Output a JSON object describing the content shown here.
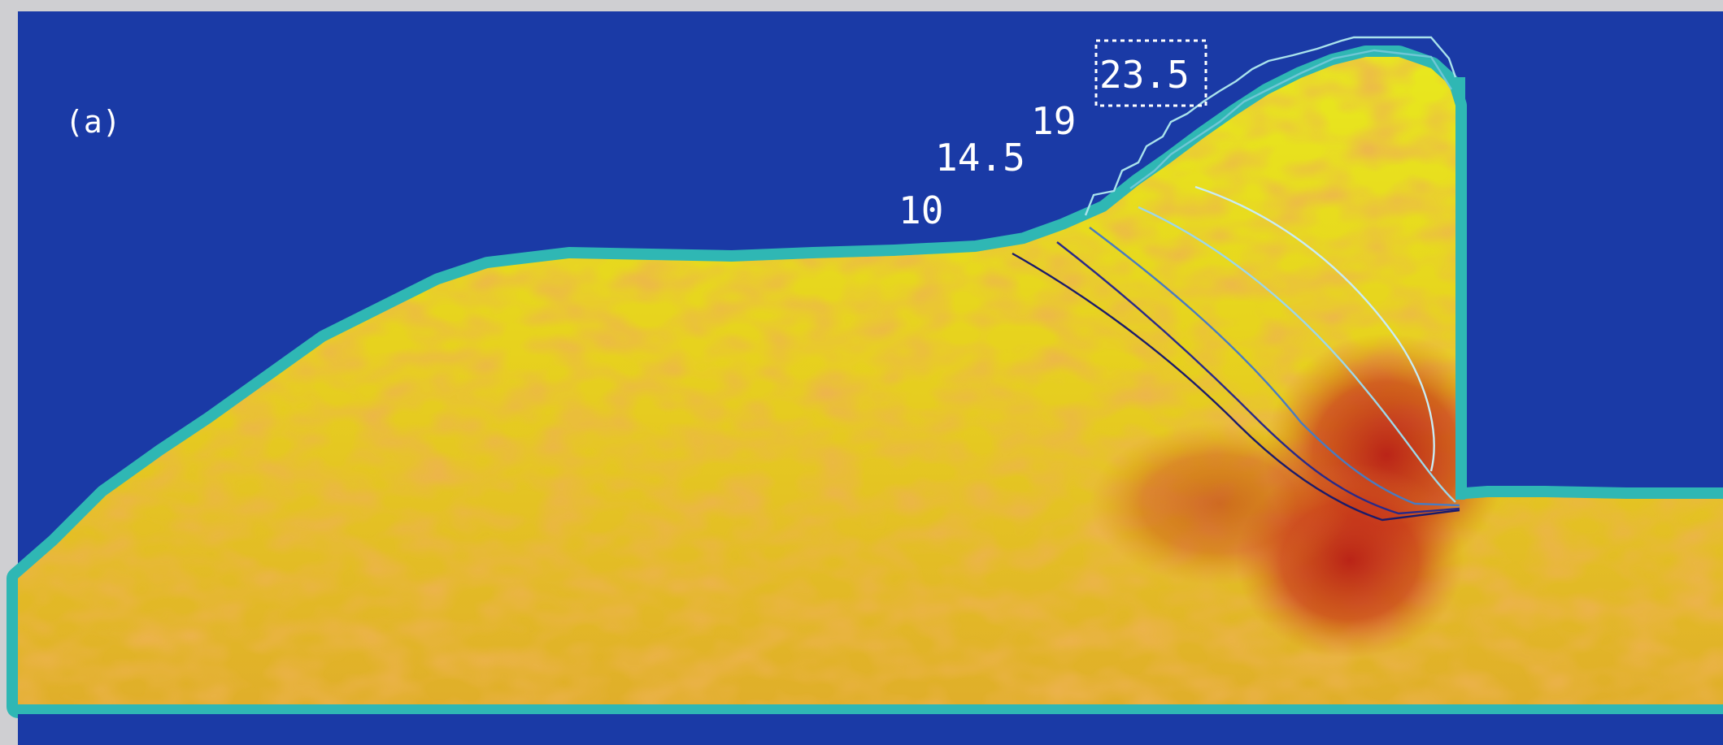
{
  "panel_label": "(a)",
  "contour_labels": {
    "c10": "10",
    "c14_5": "14.5",
    "c19": "19",
    "c23_5": "23.5"
  },
  "colors": {
    "background": "#1a3aa6",
    "fluid_low": "#e6e61c",
    "fluid_mid": "#e0a22a",
    "fluid_high": "#c0261a",
    "interface": "#2fb7b4",
    "frame": "#cfcfd2"
  }
}
